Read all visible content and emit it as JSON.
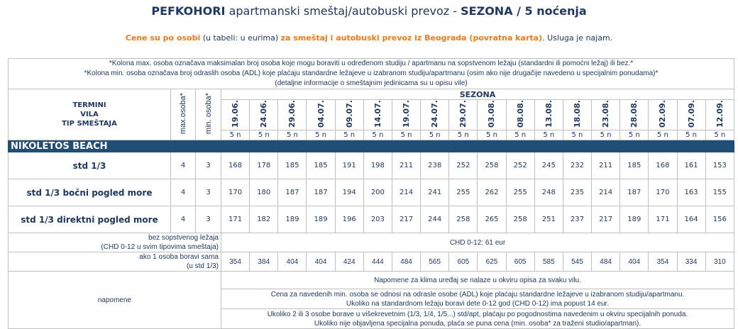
{
  "title": {
    "bold": "PEFKOHORI",
    "rest": " apartmanski smeštaj/autobuski prevoz - ",
    "bold2": "SEZONA / 5 noćenja"
  },
  "subtitle": {
    "p1": "Cene su po osobi",
    "p2": " (u tabeli: u eurima) ",
    "p3": "za smeštaj i autobuski prevoz iz Beograda (povratna karta)",
    "p4": ". Usluga je najam."
  },
  "notes": [
    "*Kolona max. osoba označava maksimalan broj osoba koje mogu boraviti u određenom studiju / apartmanu na sopstvenom ležaju (standardni ili pomoćni ležaj) ili bez.*",
    "*Kolona min. osoba označava broj odraslih osoba (ADL) koje plaćaju standardne ležajeve u izabranom studiju/apartmanu (osim ako nije drugačije navedeno u specijalnim ponudama)*",
    "(detaljne informacije o smeštajnim jedinicama su u opisu vile)"
  ],
  "header": {
    "termini": "TERMINI",
    "vila": "VILA",
    "tip": "TIP SMEŠTAJA",
    "max": "max.osoba*",
    "min": "min. osoba*",
    "season": "SEZONA",
    "dates": [
      "19.06.",
      "24.06.",
      "29.06.",
      "04.07.",
      "09.07.",
      "14.07.",
      "19.07.",
      "24.07.",
      "29.07.",
      "03.08.",
      "08.08.",
      "13.08.",
      "18.08.",
      "23.08.",
      "28.08.",
      "02.09.",
      "07.09.",
      "12.09."
    ],
    "nights": "5 n"
  },
  "villa": "NIKOLETOS BEACH",
  "rows": [
    {
      "type": "std 1/3",
      "max": "4",
      "min": "3",
      "prices": [
        168,
        178,
        185,
        185,
        191,
        198,
        211,
        238,
        252,
        258,
        252,
        245,
        232,
        211,
        185,
        168,
        161,
        153
      ]
    },
    {
      "type": "std 1/3 bočni pogled more",
      "max": "4",
      "min": "3",
      "prices": [
        170,
        180,
        187,
        187,
        194,
        200,
        214,
        241,
        255,
        262,
        255,
        248,
        235,
        214,
        187,
        170,
        163,
        155
      ]
    },
    {
      "type": "std 1/3 direktni pogled more",
      "max": "4",
      "min": "3",
      "prices": [
        171,
        182,
        189,
        189,
        196,
        203,
        217,
        244,
        258,
        265,
        258,
        251,
        237,
        217,
        189,
        171,
        164,
        156
      ]
    }
  ],
  "chd": {
    "label1": "bez sopstvenog ležaja",
    "label2": "(CHD 0-12 u svim tipovima smeštaja)",
    "value": "CHD 0-12: 61 eur"
  },
  "single": {
    "label1": "ako 1 osoba boravi sama",
    "label2": "(u std 1/3)",
    "prices": [
      354,
      384,
      404,
      404,
      424,
      444,
      484,
      565,
      605,
      625,
      605,
      585,
      545,
      484,
      404,
      354,
      334,
      310
    ]
  },
  "remarks": {
    "label": "napomene",
    "lines": [
      "Napomene za klima uređaj se nalaze u okviru opisa za svaku vilu.",
      "Cena za  navedenih min. osoba se odnosi na odrasle osobe (ADL) koje plaćaju standardne ležajeve u izabranom studiju/apartmanu.",
      "Ukoliko na standardnom ležaju boravi dete 0-12 god (CHD 0-12) ima popust 14 eur.",
      "Ukoliko 2 ili 3 osobe borave u višekrevetnim (1/3, 1/4, 1/5...) std/apt, plaćaju po pogodnostima navedenim u okviru specijalnih ponuda.",
      "Ukoliko nije objavljena specijalna ponuda, plaća se puna cena (min. osoba* za traženi studio/apartman)."
    ]
  },
  "colors": {
    "navy": "#1f3864",
    "orange": "#f07a18",
    "band": "#1f4e79"
  }
}
